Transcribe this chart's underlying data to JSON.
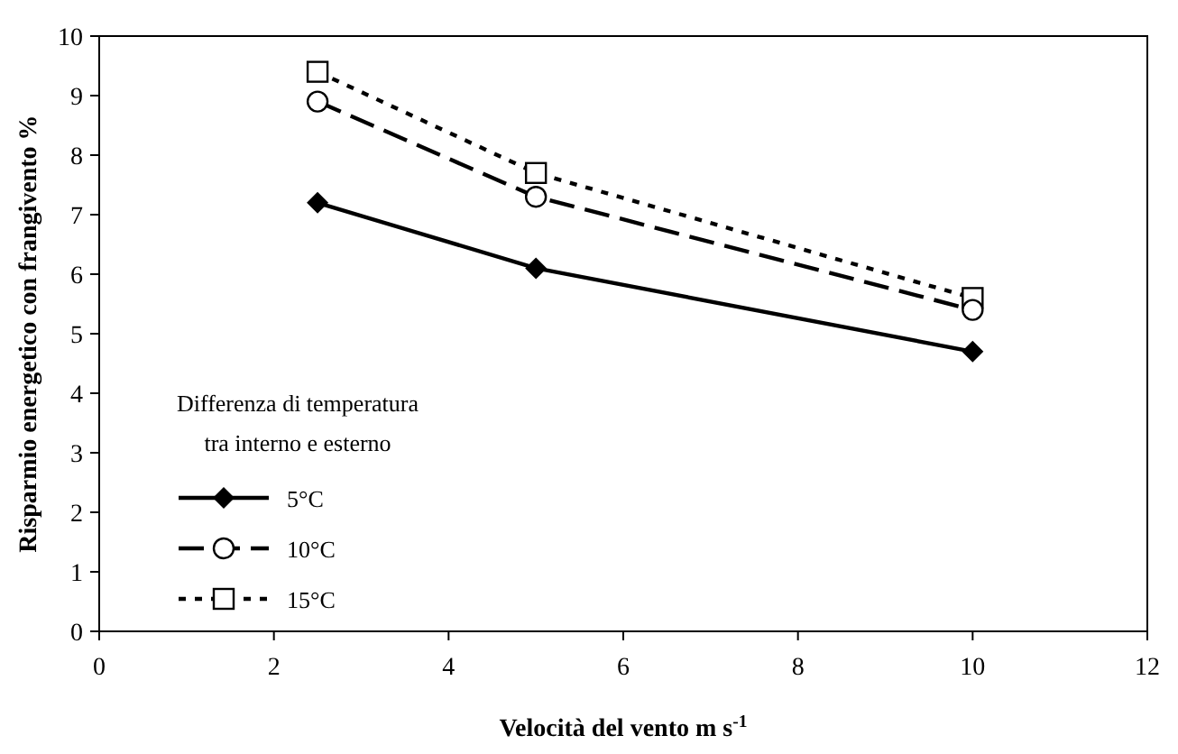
{
  "chart_data": {
    "type": "line",
    "xlabel": "Velocità del vento m s$^{-1}$",
    "ylabel": "Risparmio energetico con frangivento %",
    "legend_title": "Differenza di temperatura\ntra interno e esterno",
    "legend": "bottom left",
    "x": [
      2.5,
      5,
      10
    ],
    "xlim": [
      0,
      12
    ],
    "xticks": [
      0,
      2,
      4,
      6,
      8,
      10,
      12
    ],
    "ylim": [
      0,
      10
    ],
    "yticks": [
      0,
      1,
      2,
      3,
      4,
      5,
      6,
      7,
      8,
      9,
      10
    ],
    "grid": false,
    "series": [
      {
        "name": "5°C",
        "color": "#000000",
        "marker": "diamond",
        "line_style": "solid",
        "values": [
          7.2,
          6.1,
          4.7
        ]
      },
      {
        "name": "10°C",
        "color": "#000000",
        "marker": "circle",
        "line_style": "dashed",
        "values": [
          8.9,
          7.3,
          5.4
        ]
      },
      {
        "name": "15°C",
        "color": "#000000",
        "marker": "square",
        "line_style": "dotted",
        "values": [
          9.4,
          7.7,
          5.6
        ]
      }
    ]
  }
}
